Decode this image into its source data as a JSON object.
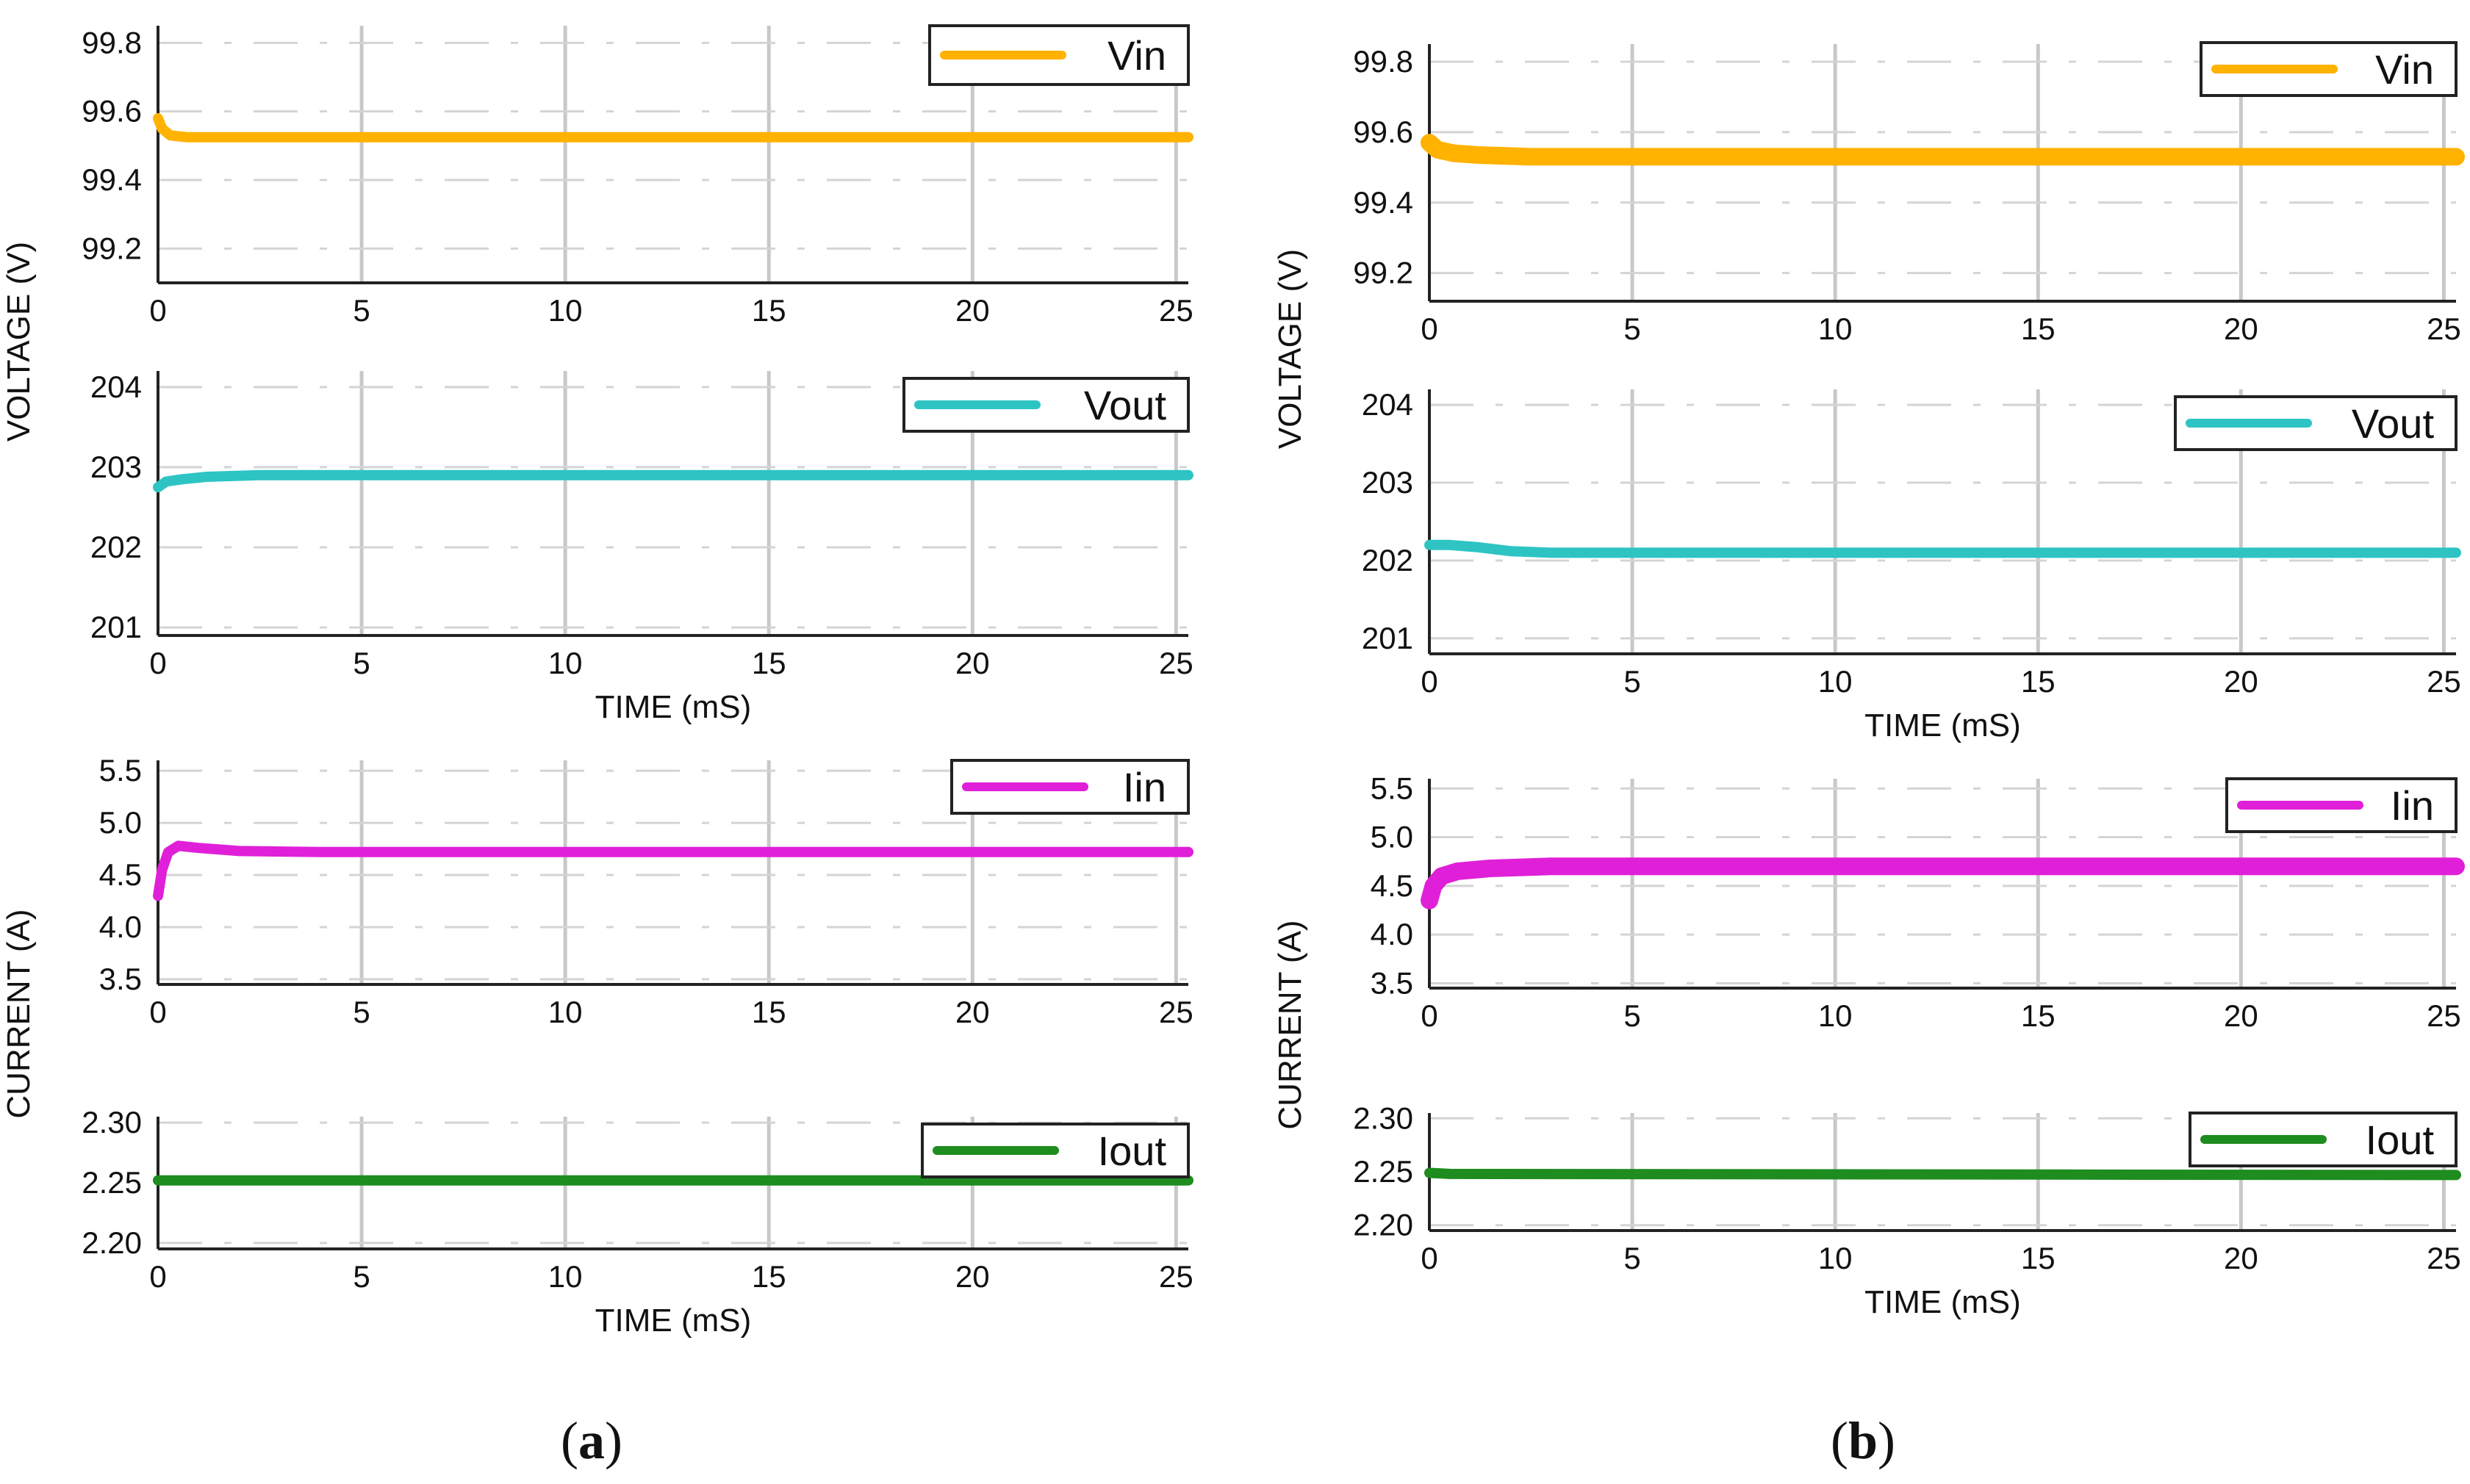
{
  "chart_data": [
    {
      "panel": "(a)",
      "charts": [
        {
          "type": "line",
          "legend": "Vin",
          "color": "#FFB200",
          "ylim": [
            99.1,
            99.85
          ],
          "yticks": [
            99.2,
            99.4,
            99.6,
            99.8
          ],
          "yticklabels": [
            "99.2",
            "99.4",
            "99.6",
            "99.8"
          ],
          "xlim": [
            0,
            25.3
          ],
          "xticks": [
            0,
            5,
            10,
            15,
            20,
            25
          ],
          "xticklabels": [
            "0",
            "5",
            "10",
            "15",
            "20",
            "25"
          ],
          "xlabel": "",
          "x": [
            0,
            0.1,
            0.3,
            0.7,
            1.5,
            3,
            25.3
          ],
          "y": [
            99.58,
            99.55,
            99.53,
            99.525,
            99.525,
            99.525,
            99.525
          ]
        },
        {
          "type": "line",
          "legend": "Vout",
          "color": "#2EC4C4",
          "ylim": [
            200.9,
            204.2
          ],
          "yticks": [
            201,
            202,
            203,
            204
          ],
          "yticklabels": [
            "201",
            "202",
            "203",
            "204"
          ],
          "xlim": [
            0,
            25.3
          ],
          "xticks": [
            0,
            5,
            10,
            15,
            20,
            25
          ],
          "xticklabels": [
            "0",
            "5",
            "10",
            "15",
            "20",
            "25"
          ],
          "xlabel": "TIME (mS)",
          "x": [
            0,
            0.2,
            0.6,
            1.2,
            2.5,
            25.3
          ],
          "y": [
            202.75,
            202.82,
            202.85,
            202.88,
            202.9,
            202.9
          ]
        },
        {
          "type": "line",
          "legend": "Iin",
          "color": "#E020D8",
          "ylim": [
            3.45,
            5.6
          ],
          "yticks": [
            3.5,
            4.0,
            4.5,
            5.0,
            5.5
          ],
          "yticklabels": [
            "3.5",
            "4.0",
            "4.5",
            "5.0",
            "5.5"
          ],
          "xlim": [
            0,
            25.3
          ],
          "xticks": [
            0,
            5,
            10,
            15,
            20,
            25
          ],
          "xticklabels": [
            "0",
            "5",
            "10",
            "15",
            "20",
            "25"
          ],
          "xlabel": "",
          "x": [
            0,
            0.1,
            0.25,
            0.5,
            1.0,
            2.0,
            4.0,
            25.3
          ],
          "y": [
            4.3,
            4.55,
            4.72,
            4.78,
            4.76,
            4.73,
            4.72,
            4.72
          ]
        },
        {
          "type": "line",
          "legend": "Iout",
          "color": "#1E8C1E",
          "ylim": [
            2.195,
            2.305
          ],
          "yticks": [
            2.2,
            2.25,
            2.3
          ],
          "yticklabels": [
            "2.20",
            "2.25",
            "2.30"
          ],
          "xlim": [
            0,
            25.3
          ],
          "xticks": [
            0,
            5,
            10,
            15,
            20,
            25
          ],
          "xticklabels": [
            "0",
            "5",
            "10",
            "15",
            "20",
            "25"
          ],
          "xlabel": "TIME (mS)",
          "x": [
            0,
            25.3
          ],
          "y": [
            2.252,
            2.252
          ]
        }
      ],
      "ylabel_top": "VOLTAGE (V)",
      "ylabel_bottom": "CURRENT (A)"
    },
    {
      "panel": "(b)",
      "charts": [
        {
          "type": "line",
          "legend": "Vin",
          "color": "#FFB200",
          "ylim": [
            99.12,
            99.85
          ],
          "yticks": [
            99.2,
            99.4,
            99.6,
            99.8
          ],
          "yticklabels": [
            "99.2",
            "99.4",
            "99.6",
            "99.8"
          ],
          "xlim": [
            0,
            25.3
          ],
          "xticks": [
            0,
            5,
            10,
            15,
            20,
            25
          ],
          "xticklabels": [
            "0",
            "5",
            "10",
            "15",
            "20",
            "25"
          ],
          "xlabel": "",
          "x": [
            0,
            0.2,
            0.6,
            1.2,
            2.5,
            25.3
          ],
          "y": [
            99.57,
            99.55,
            99.54,
            99.535,
            99.53,
            99.53
          ]
        },
        {
          "type": "line",
          "legend": "Vout",
          "color": "#2EC4C4",
          "ylim": [
            200.8,
            204.2
          ],
          "yticks": [
            201,
            202,
            203,
            204
          ],
          "yticklabels": [
            "201",
            "202",
            "203",
            "204"
          ],
          "xlim": [
            0,
            25.3
          ],
          "xticks": [
            0,
            5,
            10,
            15,
            20,
            25
          ],
          "xticklabels": [
            "0",
            "5",
            "10",
            "15",
            "20",
            "25"
          ],
          "xlabel": "TIME (mS)",
          "x": [
            0,
            0.5,
            1.2,
            2.0,
            3.0,
            25.3
          ],
          "y": [
            202.2,
            202.2,
            202.17,
            202.12,
            202.1,
            202.1
          ]
        },
        {
          "type": "line",
          "legend": "Iin",
          "color": "#E020D8",
          "ylim": [
            3.45,
            5.6
          ],
          "yticks": [
            3.5,
            4.0,
            4.5,
            5.0,
            5.5
          ],
          "yticklabels": [
            "3.5",
            "4.0",
            "4.5",
            "5.0",
            "5.5"
          ],
          "xlim": [
            0,
            25.3
          ],
          "xticks": [
            0,
            5,
            10,
            15,
            20,
            25
          ],
          "xticklabels": [
            "0",
            "5",
            "10",
            "15",
            "20",
            "25"
          ],
          "xlabel": "",
          "x": [
            0,
            0.1,
            0.3,
            0.7,
            1.5,
            3.0,
            25.3
          ],
          "y": [
            4.35,
            4.5,
            4.6,
            4.65,
            4.68,
            4.7,
            4.7
          ]
        },
        {
          "type": "line",
          "legend": "Iout",
          "color": "#1E8C1E",
          "ylim": [
            2.195,
            2.305
          ],
          "yticks": [
            2.2,
            2.25,
            2.3
          ],
          "yticklabels": [
            "2.20",
            "2.25",
            "2.30"
          ],
          "xlim": [
            0,
            25.3
          ],
          "xticks": [
            0,
            5,
            10,
            15,
            20,
            25
          ],
          "xticklabels": [
            "0",
            "5",
            "10",
            "15",
            "20",
            "25"
          ],
          "xlabel": "TIME (mS)",
          "x": [
            0,
            0.5,
            25.3
          ],
          "y": [
            2.249,
            2.248,
            2.247
          ]
        }
      ],
      "ylabel_top": "VOLTAGE (V)",
      "ylabel_bottom": "CURRENT (A)"
    }
  ]
}
